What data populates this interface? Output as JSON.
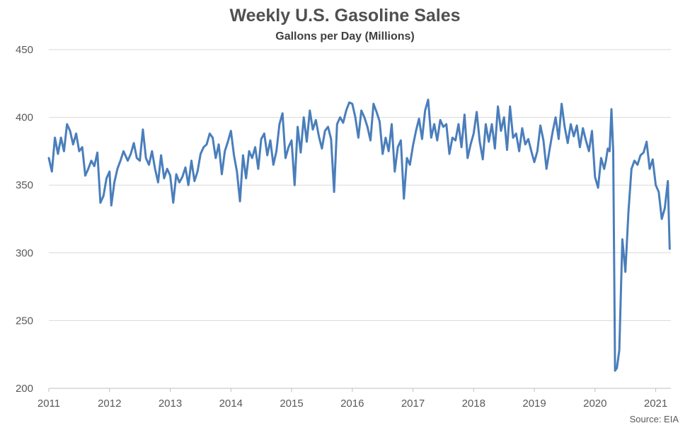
{
  "chart_data": {
    "type": "line",
    "title": "Weekly U.S. Gasoline Sales",
    "subtitle": "Gallons per Day (Millions)",
    "source": "Source: EIA",
    "xlabel": "",
    "ylabel": "",
    "xlim": [
      2011.0,
      2021.25
    ],
    "ylim": [
      200,
      450
    ],
    "yticks": [
      200,
      250,
      300,
      350,
      400,
      450
    ],
    "xticks": [
      2011,
      2012,
      2013,
      2014,
      2015,
      2016,
      2017,
      2018,
      2019,
      2020,
      2021
    ],
    "xtick_labels": [
      "2011",
      "2012",
      "2013",
      "2014",
      "2015",
      "2016",
      "2017",
      "2018",
      "2019",
      "2020",
      "2021"
    ],
    "ytick_labels": [
      "200",
      "250",
      "300",
      "350",
      "400",
      "450"
    ],
    "grid": "horizontal",
    "legend": "none",
    "color": "#4a7ebb",
    "series": [
      {
        "x": [
          2011.0,
          2011.05,
          2011.1,
          2011.15,
          2011.2,
          2011.25,
          2011.3,
          2011.35,
          2011.4,
          2011.45,
          2011.5,
          2011.55,
          2011.6,
          2011.65,
          2011.7,
          2011.75,
          2011.8,
          2011.85,
          2011.9,
          2011.95,
          2012.0,
          2012.03,
          2012.08,
          2012.13,
          2012.18,
          2012.23,
          2012.3,
          2012.35,
          2012.4,
          2012.45,
          2012.5,
          2012.55,
          2012.6,
          2012.65,
          2012.7,
          2012.75,
          2012.8,
          2012.85,
          2012.9,
          2012.95,
          2013.0,
          2013.05,
          2013.1,
          2013.15,
          2013.2,
          2013.25,
          2013.3,
          2013.35,
          2013.4,
          2013.45,
          2013.5,
          2013.55,
          2013.6,
          2013.65,
          2013.7,
          2013.75,
          2013.8,
          2013.85,
          2013.9,
          2013.95,
          2014.0,
          2014.05,
          2014.1,
          2014.15,
          2014.2,
          2014.25,
          2014.3,
          2014.35,
          2014.4,
          2014.45,
          2014.5,
          2014.55,
          2014.6,
          2014.65,
          2014.7,
          2014.75,
          2014.8,
          2014.85,
          2014.9,
          2014.95,
          2015.0,
          2015.05,
          2015.1,
          2015.15,
          2015.2,
          2015.25,
          2015.3,
          2015.35,
          2015.4,
          2015.45,
          2015.5,
          2015.55,
          2015.6,
          2015.65,
          2015.7,
          2015.75,
          2015.8,
          2015.85,
          2015.9,
          2015.95,
          2016.0,
          2016.05,
          2016.1,
          2016.15,
          2016.2,
          2016.25,
          2016.3,
          2016.35,
          2016.4,
          2016.45,
          2016.5,
          2016.55,
          2016.6,
          2016.65,
          2016.7,
          2016.75,
          2016.8,
          2016.85,
          2016.9,
          2016.95,
          2017.0,
          2017.05,
          2017.1,
          2017.15,
          2017.2,
          2017.25,
          2017.3,
          2017.35,
          2017.4,
          2017.45,
          2017.5,
          2017.55,
          2017.6,
          2017.65,
          2017.7,
          2017.75,
          2017.8,
          2017.85,
          2017.9,
          2017.95,
          2018.0,
          2018.05,
          2018.1,
          2018.15,
          2018.2,
          2018.25,
          2018.3,
          2018.35,
          2018.4,
          2018.45,
          2018.5,
          2018.55,
          2018.6,
          2018.65,
          2018.7,
          2018.75,
          2018.8,
          2018.85,
          2018.9,
          2018.95,
          2019.0,
          2019.05,
          2019.1,
          2019.15,
          2019.2,
          2019.25,
          2019.3,
          2019.35,
          2019.4,
          2019.45,
          2019.5,
          2019.55,
          2019.6,
          2019.65,
          2019.7,
          2019.75,
          2019.8,
          2019.85,
          2019.9,
          2019.95,
          2020.0,
          2020.05,
          2020.1,
          2020.15,
          2020.18,
          2020.21,
          2020.24,
          2020.27,
          2020.3,
          2020.33,
          2020.36,
          2020.4,
          2020.45,
          2020.5,
          2020.55,
          2020.6,
          2020.65,
          2020.7,
          2020.75,
          2020.8,
          2020.85,
          2020.9,
          2020.95,
          2021.0,
          2021.05,
          2021.1,
          2021.15,
          2021.2,
          2021.23
        ],
        "y": [
          370,
          360,
          385,
          373,
          385,
          375,
          395,
          390,
          380,
          388,
          375,
          378,
          357,
          362,
          368,
          364,
          374,
          337,
          342,
          355,
          360,
          335,
          352,
          362,
          368,
          375,
          368,
          373,
          381,
          370,
          368,
          391,
          370,
          365,
          375,
          362,
          352,
          372,
          355,
          362,
          357,
          337,
          358,
          352,
          356,
          363,
          350,
          368,
          353,
          360,
          373,
          378,
          380,
          388,
          385,
          370,
          380,
          358,
          375,
          382,
          390,
          372,
          360,
          338,
          372,
          355,
          375,
          370,
          378,
          362,
          384,
          388,
          372,
          383,
          365,
          375,
          395,
          403,
          370,
          378,
          383,
          350,
          393,
          374,
          400,
          382,
          405,
          391,
          398,
          386,
          377,
          390,
          393,
          384,
          345,
          395,
          400,
          396,
          405,
          411,
          410,
          400,
          385,
          405,
          400,
          393,
          383,
          410,
          404,
          397,
          373,
          385,
          375,
          395,
          360,
          378,
          383,
          340,
          370,
          365,
          379,
          390,
          399,
          384,
          405,
          413,
          385,
          395,
          383,
          398,
          393,
          395,
          373,
          385,
          383,
          395,
          378,
          402,
          370,
          380,
          388,
          404,
          382,
          369,
          395,
          382,
          395,
          377,
          408,
          390,
          400,
          376,
          408,
          385,
          388,
          375,
          392,
          380,
          384,
          375,
          367,
          375,
          394,
          383,
          362,
          376,
          389,
          400,
          384,
          410,
          393,
          381,
          395,
          386,
          394,
          378,
          392,
          383,
          375,
          390,
          356,
          348,
          370,
          362,
          368,
          377,
          375,
          406,
          375,
          213,
          215,
          228,
          310,
          286,
          330,
          362,
          368,
          365,
          372,
          374,
          382,
          362,
          369,
          350,
          345,
          325,
          333,
          353,
          303
        ]
      }
    ]
  }
}
